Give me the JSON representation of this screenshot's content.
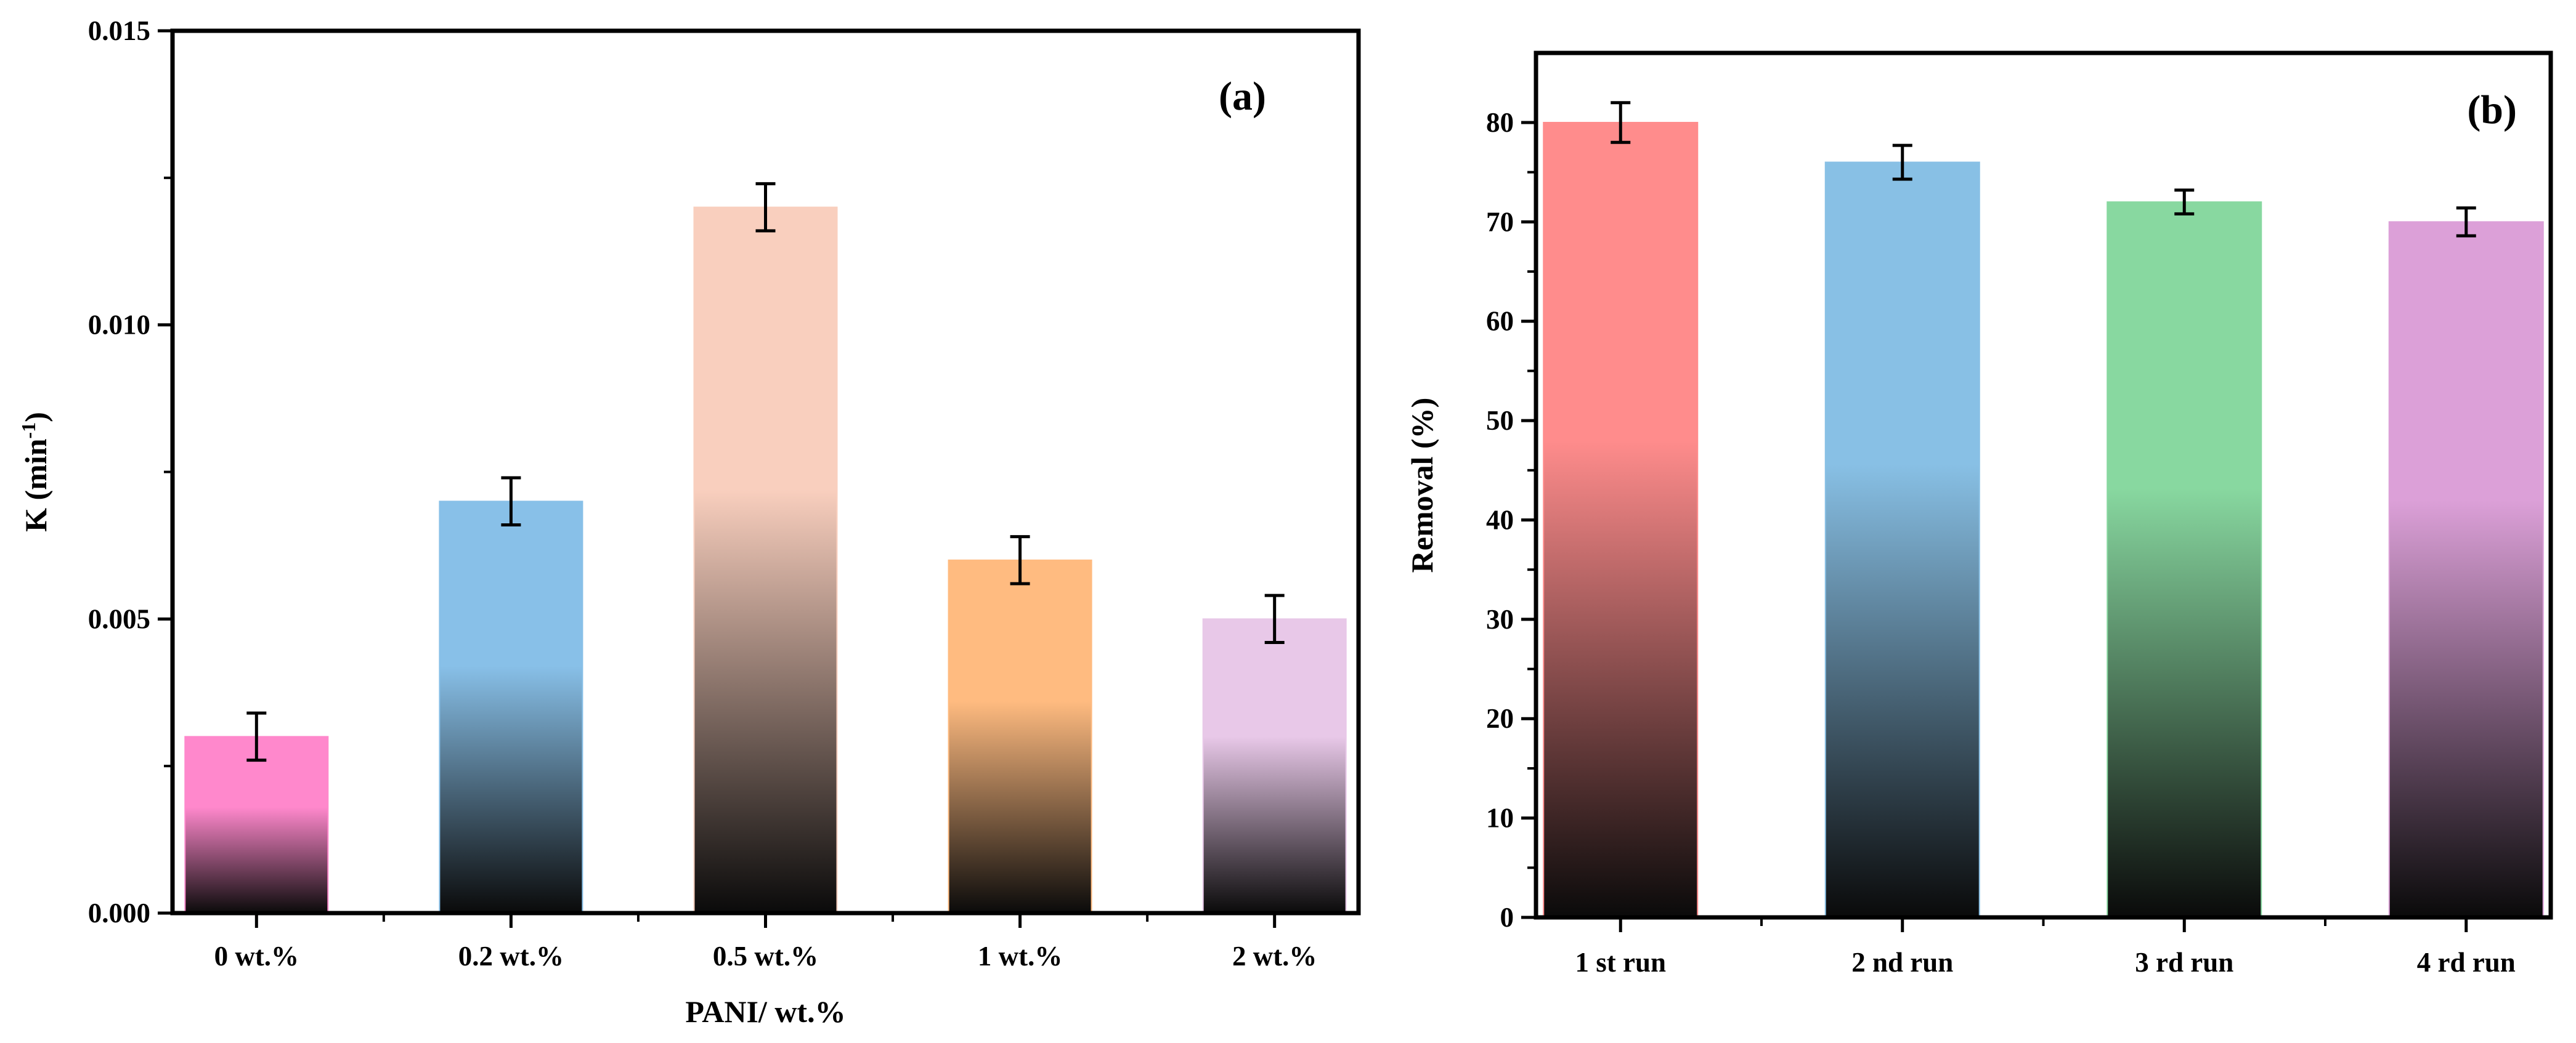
{
  "chart_data": [
    {
      "id": "a",
      "type": "bar",
      "panel_label": "(a)",
      "xlabel": "PANI/ wt.%",
      "ylabel": "K (min",
      "ylabel_sup": "-1",
      "ylabel_close": ")",
      "categories": [
        "0 wt.%",
        "0.2 wt.%",
        "0.5 wt.%",
        "1 wt.%",
        "2 wt.%"
      ],
      "values": [
        0.003,
        0.007,
        0.012,
        0.006,
        0.005
      ],
      "errors": [
        0.0004,
        0.0004,
        0.0004,
        0.0004,
        0.0004
      ],
      "ylim": [
        0,
        0.015
      ],
      "yticks": [
        0,
        0.005,
        0.01,
        0.015
      ],
      "ytick_labels": [
        "0.000",
        "0.005",
        "0.010",
        "0.015"
      ],
      "colors": [
        "#ff88cc",
        "#88c0e8",
        "#f9cfbe",
        "#ffbb80",
        "#e8c8e8"
      ]
    },
    {
      "id": "b",
      "type": "bar",
      "panel_label": "(b)",
      "xlabel": "",
      "ylabel": "Removal (%)",
      "categories": [
        "1 st run",
        "2 nd run",
        "3 rd run",
        "4 rd run"
      ],
      "values": [
        80,
        76,
        72,
        70
      ],
      "errors": [
        2,
        1.7,
        1.2,
        1.4
      ],
      "ylim": [
        0,
        87
      ],
      "yticks": [
        0,
        10,
        20,
        30,
        40,
        50,
        60,
        70,
        80
      ],
      "ytick_labels": [
        "0",
        "10",
        "20",
        "30",
        "40",
        "50",
        "60",
        "70",
        "80"
      ],
      "colors": [
        "#ff8c8c",
        "#88c0e5",
        "#88d8a0",
        "#dca0d8"
      ]
    }
  ]
}
